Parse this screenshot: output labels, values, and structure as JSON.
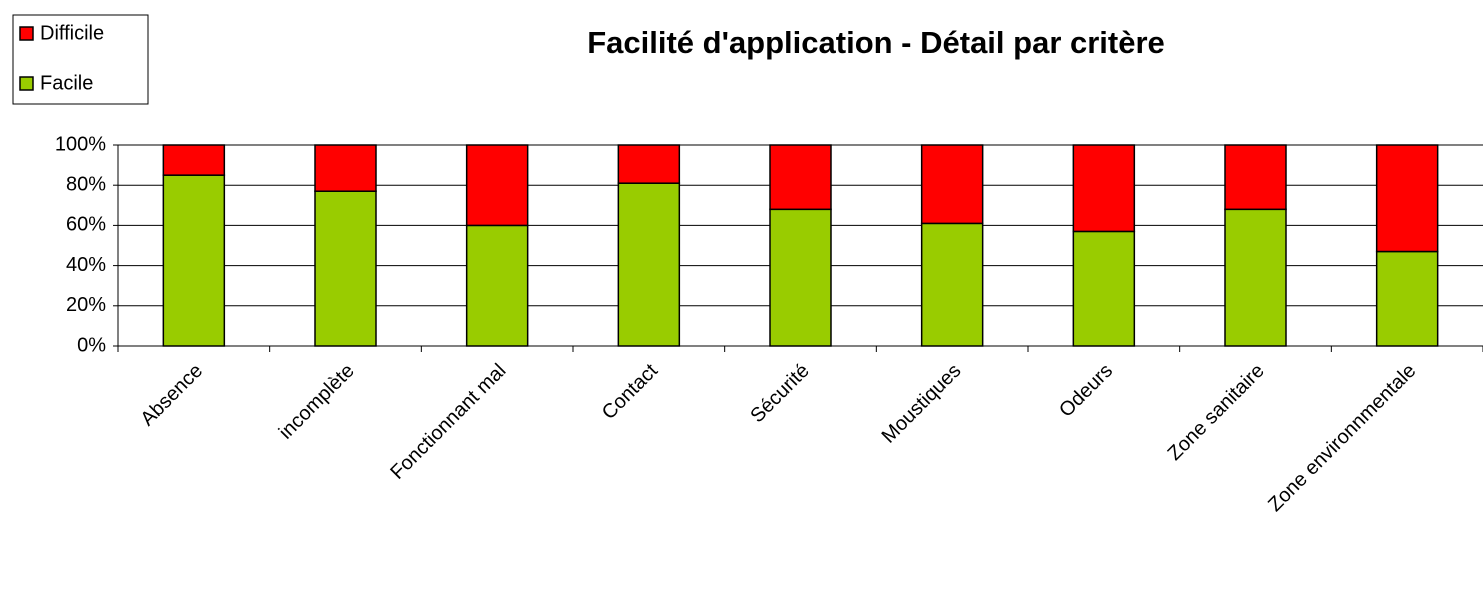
{
  "chart_data": {
    "type": "stacked_bar",
    "title": "Facilité d'application - Détail par critère",
    "categories": [
      "Absence",
      "incomplète",
      "Fonctionnant mal",
      "Contact",
      "Sécurité",
      "Moustiques",
      "Odeurs",
      "Zone sanitaire",
      "Zone environnmentale"
    ],
    "series": [
      {
        "name": "Facile",
        "color": "#99cc00",
        "values": [
          85,
          77,
          60,
          81,
          68,
          61,
          57,
          68,
          47
        ]
      },
      {
        "name": "Difficile",
        "color": "#ff0000",
        "values": [
          15,
          23,
          40,
          19,
          32,
          39,
          43,
          32,
          53
        ]
      }
    ],
    "ylim": [
      0,
      100
    ],
    "yticks": [
      {
        "value": 0,
        "label": "0%"
      },
      {
        "value": 20,
        "label": "20%"
      },
      {
        "value": 40,
        "label": "40%"
      },
      {
        "value": 60,
        "label": "60%"
      },
      {
        "value": 80,
        "label": "80%"
      },
      {
        "value": 100,
        "label": "100%"
      }
    ],
    "grid": true,
    "legend": "top-left"
  }
}
